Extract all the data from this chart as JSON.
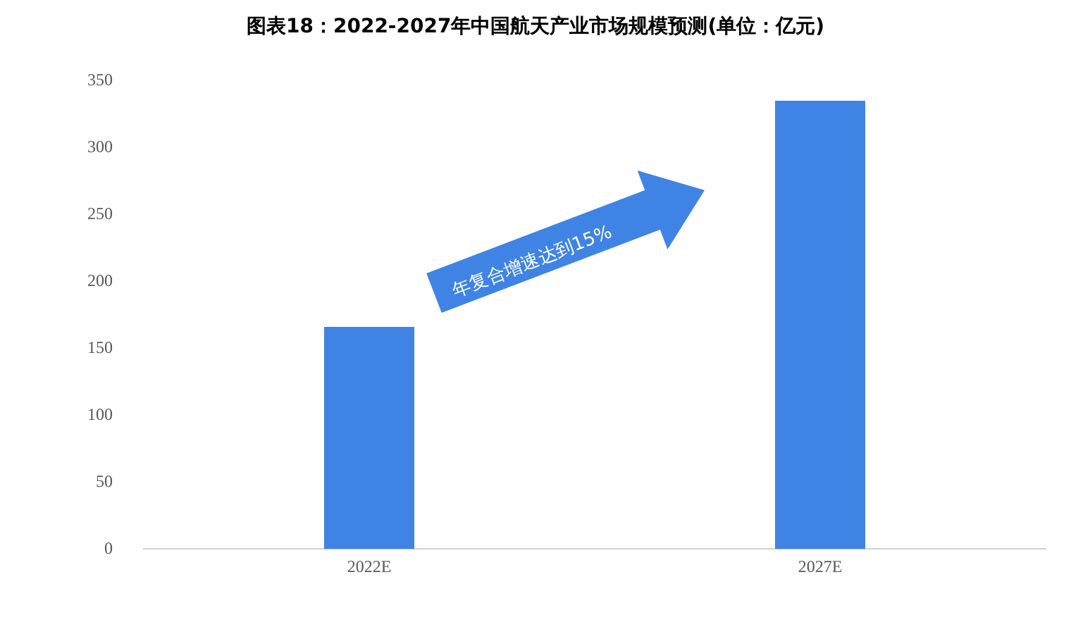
{
  "chart_data": {
    "type": "bar",
    "title": "图表18：2022-2027年中国航天产业市场规模预测(单位：亿元)",
    "categories": [
      "2022E",
      "2027E"
    ],
    "values": [
      166,
      335
    ],
    "color": "#3f84e5",
    "ylim": [
      0,
      350
    ],
    "yticks": [
      0,
      50,
      100,
      150,
      200,
      250,
      300,
      350
    ],
    "grid": false,
    "annotations": [
      "年复合增速达到15%"
    ]
  }
}
